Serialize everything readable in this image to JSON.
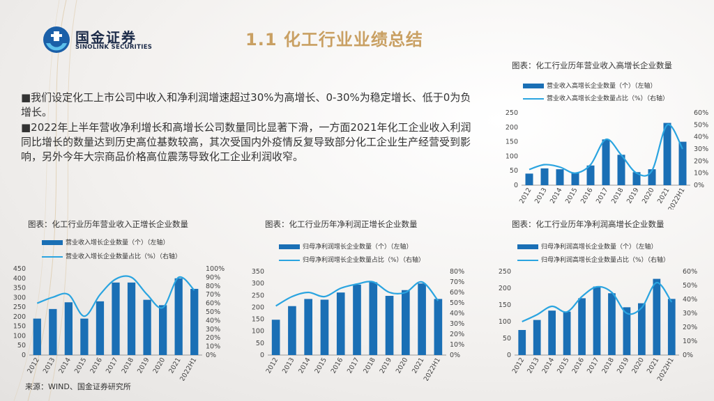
{
  "header": {
    "logo_cn": "国金证券",
    "logo_en": "SINOLINK SECURITIES",
    "title": "1.1 化工行业业绩总结"
  },
  "bullets": [
    "■我们设定化工上市公司中收入和净利润增速超过30%为高增长、0-30%为稳定增长、低于0为负增长。",
    "■2022年上半年营收净利增长和高增长公司数量同比显著下滑，一方面2021年化工企业收入利润同比增长的数量达到历史高位基数较高，其次受国内外疫情反复导致部分化工企业生产经营受到影响，另外今年大宗商品价格高位震荡导致化工企业利润收窄。"
  ],
  "source": "来源：WIND、国金证券研究所",
  "colors": {
    "bar": "#1a6fb5",
    "line": "#2aa4e0",
    "title": "#c9a063"
  },
  "chart_data": [
    {
      "type": "bar",
      "caption": "图表：化工行业历年营业收入高增长企业数量",
      "categories": [
        "2012",
        "2013",
        "2014",
        "2015",
        "2016",
        "2017",
        "2018",
        "2019",
        "2020",
        "2021",
        "2022H1"
      ],
      "series": [
        {
          "name": "营业收入高增长企业数量（个）（左轴）",
          "type": "bar",
          "axis": "left",
          "values": [
            40,
            58,
            55,
            42,
            68,
            158,
            105,
            45,
            55,
            215,
            150
          ]
        },
        {
          "name": "营业收入高增长企业数量占比（%）（右轴）",
          "type": "line",
          "axis": "right",
          "values": [
            0.13,
            0.17,
            0.15,
            0.1,
            0.17,
            0.38,
            0.25,
            0.1,
            0.12,
            0.5,
            0.3
          ]
        }
      ],
      "yticks_left": [
        "0",
        "50",
        "100",
        "150",
        "200",
        "250"
      ],
      "ylim_left": [
        0,
        250
      ],
      "yticks_right": [
        "0%",
        "10%",
        "20%",
        "30%",
        "40%",
        "50%",
        "60%"
      ],
      "ylim_right": [
        0,
        0.6
      ]
    },
    {
      "type": "bar",
      "caption": "图表：化工行业历年营业收入正增长企业数量",
      "categories": [
        "2012",
        "2013",
        "2014",
        "2015",
        "2016",
        "2017",
        "2018",
        "2019",
        "2020",
        "2021",
        "2022H1"
      ],
      "series": [
        {
          "name": "营业收入增长企业数量（个）（左轴）",
          "type": "bar",
          "axis": "left",
          "values": [
            190,
            240,
            275,
            190,
            280,
            378,
            378,
            288,
            260,
            400,
            345
          ]
        },
        {
          "name": "营业收入增长企业数量占比（%）（右轴）",
          "type": "line",
          "axis": "right",
          "values": [
            0.6,
            0.67,
            0.7,
            0.45,
            0.7,
            0.88,
            0.9,
            0.7,
            0.55,
            0.9,
            0.75
          ]
        }
      ],
      "yticks_left": [
        "0",
        "50",
        "100",
        "150",
        "200",
        "250",
        "300",
        "350",
        "400",
        "450"
      ],
      "ylim_left": [
        0,
        450
      ],
      "yticks_right": [
        "0%",
        "10%",
        "20%",
        "30%",
        "40%",
        "50%",
        "60%",
        "70%",
        "80%",
        "90%",
        "100%"
      ],
      "ylim_right": [
        0,
        1.0
      ]
    },
    {
      "type": "bar",
      "caption": "图表：化工行业历年净利润正增长企业数量",
      "categories": [
        "2012",
        "2013",
        "2014",
        "2015",
        "2016",
        "2017",
        "2018",
        "2019",
        "2020",
        "2021",
        "2022H1"
      ],
      "series": [
        {
          "name": "归母净利润增长企业数量（个）（左轴）",
          "type": "bar",
          "axis": "left",
          "values": [
            148,
            205,
            235,
            232,
            262,
            295,
            305,
            248,
            272,
            300,
            235
          ]
        },
        {
          "name": "归母净利润增长企业数量占比（%）（右轴）",
          "type": "line",
          "axis": "right",
          "values": [
            0.47,
            0.56,
            0.6,
            0.56,
            0.64,
            0.68,
            0.7,
            0.6,
            0.6,
            0.7,
            0.52
          ]
        }
      ],
      "yticks_left": [
        "0",
        "50",
        "100",
        "150",
        "200",
        "250",
        "300",
        "350"
      ],
      "ylim_left": [
        0,
        350
      ],
      "yticks_right": [
        "0%",
        "10%",
        "20%",
        "30%",
        "40%",
        "50%",
        "60%",
        "70%",
        "80%"
      ],
      "ylim_right": [
        0,
        0.8
      ]
    },
    {
      "type": "bar",
      "caption": "图表：化工行业历年净利润高增长企业数量",
      "categories": [
        "2012",
        "2013",
        "2014",
        "2015",
        "2016",
        "2017",
        "2018",
        "2019",
        "2020",
        "2021",
        "2022H1"
      ],
      "series": [
        {
          "name": "归母净利润高增长企业数量（个）（左轴）",
          "type": "bar",
          "axis": "left",
          "values": [
            75,
            105,
            133,
            130,
            170,
            205,
            185,
            143,
            155,
            228,
            168
          ]
        },
        {
          "name": "归母净利润高增长企业数量占比（%）（右轴）",
          "type": "line",
          "axis": "right",
          "values": [
            0.24,
            0.29,
            0.35,
            0.31,
            0.42,
            0.49,
            0.45,
            0.3,
            0.34,
            0.52,
            0.38
          ]
        }
      ],
      "yticks_left": [
        "0",
        "50",
        "100",
        "150",
        "200",
        "250"
      ],
      "ylim_left": [
        0,
        250
      ],
      "yticks_right": [
        "0%",
        "10%",
        "20%",
        "30%",
        "40%",
        "50%",
        "60%"
      ],
      "ylim_right": [
        0,
        0.6
      ]
    }
  ]
}
